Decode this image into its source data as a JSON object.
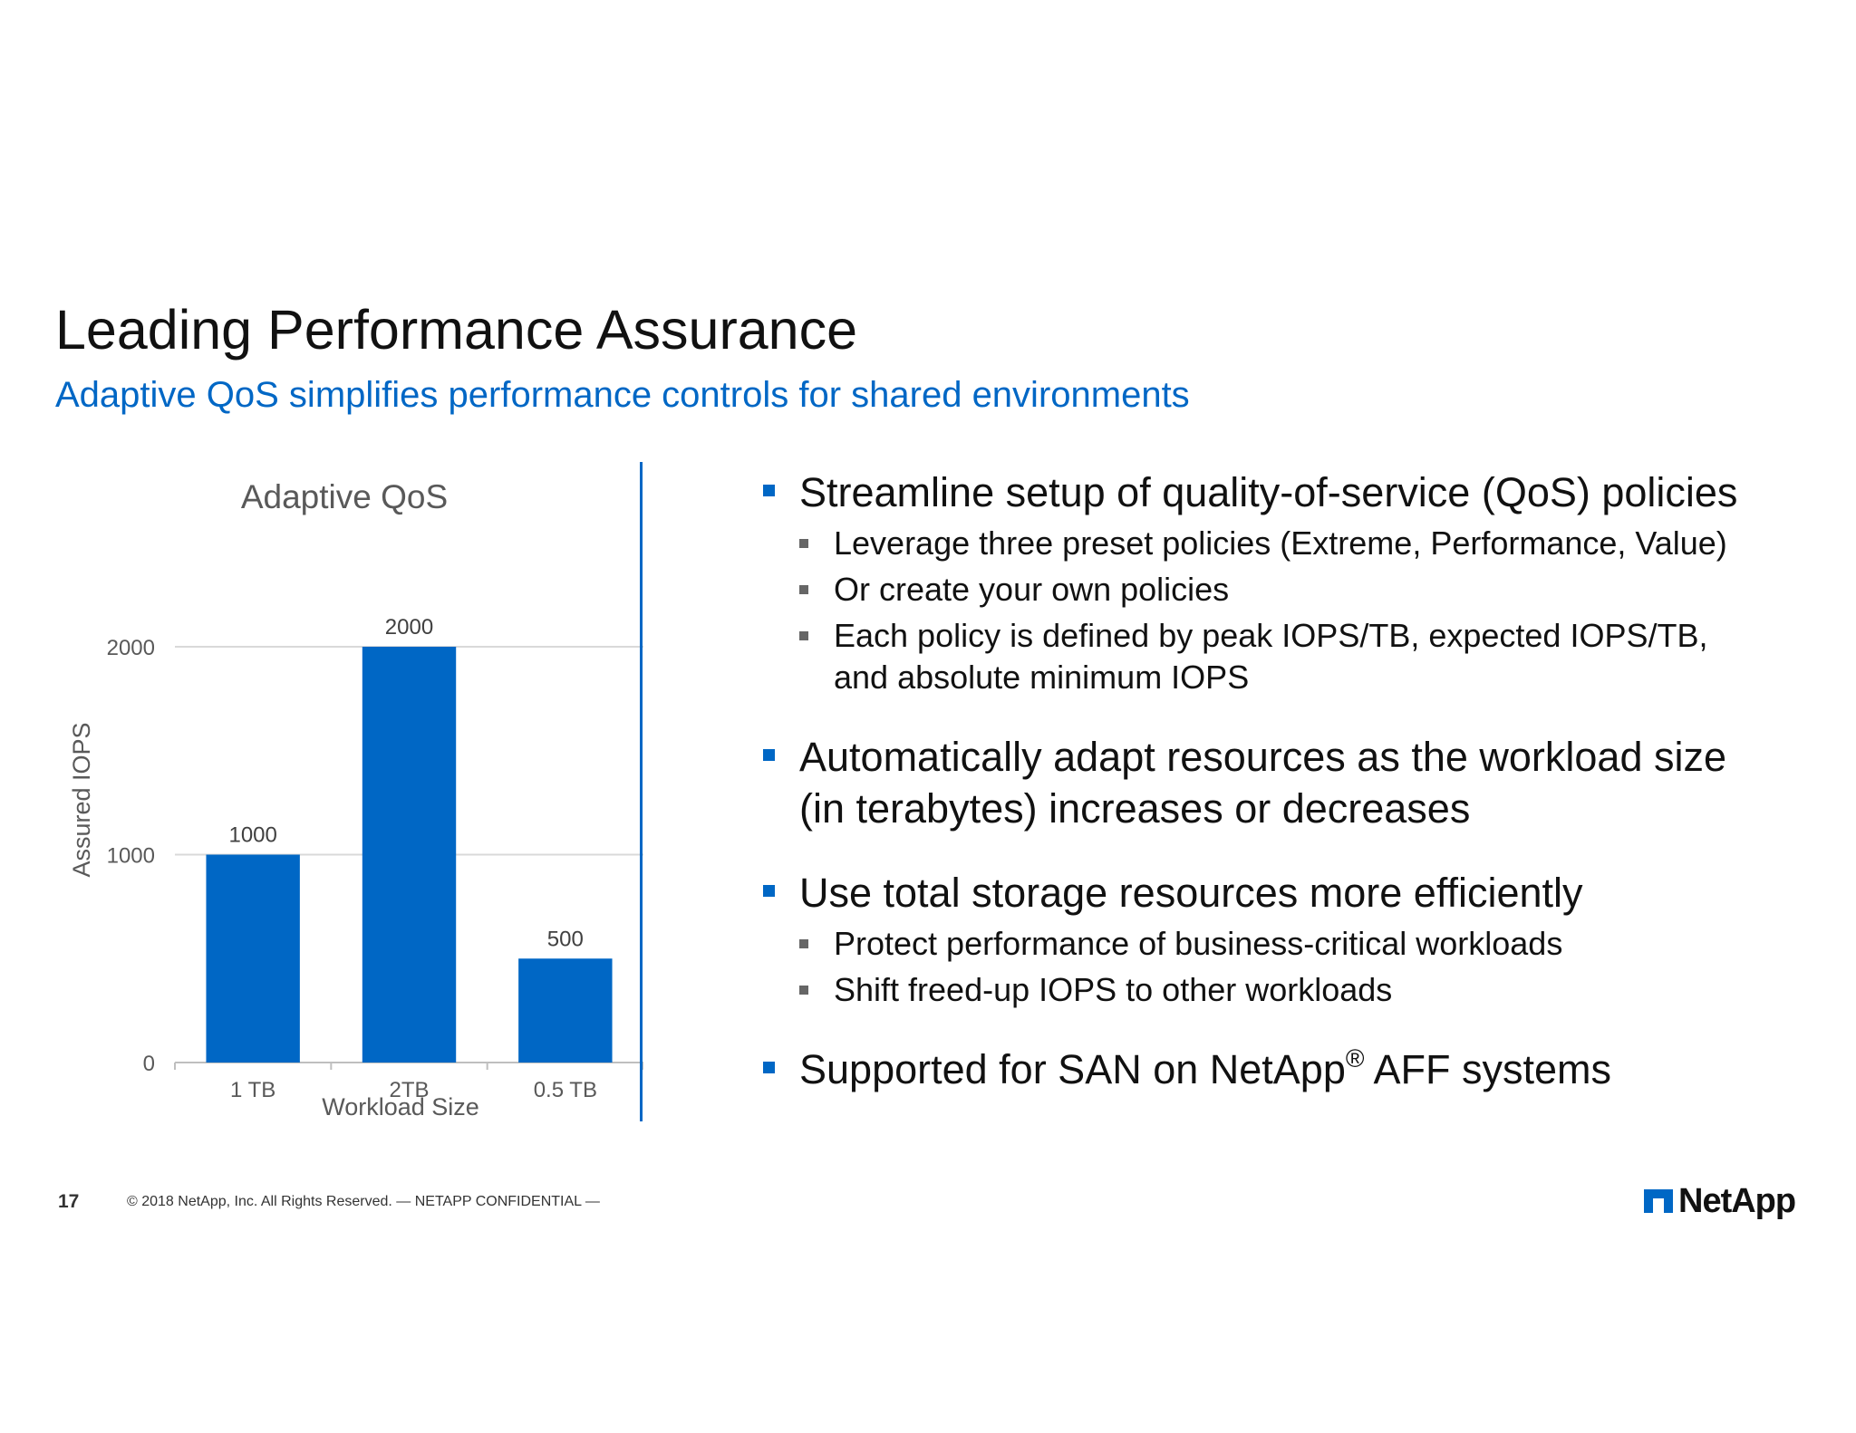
{
  "slide": {
    "title": "Leading Performance Assurance",
    "subtitle": "Adaptive QoS simplifies performance controls for shared environments"
  },
  "chart_data": {
    "type": "bar",
    "title": "Adaptive QoS",
    "xlabel": "Workload Size",
    "ylabel": "Assured IOPS",
    "categories": [
      "1 TB",
      "2TB",
      "0.5 TB"
    ],
    "values": [
      1000,
      2000,
      500
    ],
    "y_ticks": [
      0,
      1000,
      2000
    ],
    "ylim": [
      0,
      2000
    ],
    "grid": true,
    "legend": "none",
    "bar_color": "#0067c5"
  },
  "bullets": {
    "b1": "Streamline setup of quality-of-service (QoS) policies",
    "b1_1": "Leverage three preset policies (Extreme, Performance, Value)",
    "b1_2": "Or create your own policies",
    "b1_3_line1": "Each policy is defined by peak IOPS/TB, expected IOPS/TB,",
    "b1_3_line2": "and absolute minimum IOPS",
    "b2_line1": "Automatically adapt resources as the workload size",
    "b2_line2": "(in terabytes) increases or decreases",
    "b3": "Use total storage resources more efficiently",
    "b3_1": "Protect performance of business-critical workloads",
    "b3_2": "Shift freed-up IOPS to other workloads",
    "b4_pre": "Supported for SAN on NetApp",
    "b4_sup": "®",
    "b4_post": " AFF systems"
  },
  "footer": {
    "page_number": "17",
    "copyright": "© 2018 NetApp, Inc. All Rights Reserved. — NETAPP CONFIDENTIAL —"
  },
  "logo": {
    "text": "NetApp",
    "icon": "netapp-logo-icon"
  },
  "colors": {
    "accent": "#0067c5",
    "text": "#111111"
  }
}
